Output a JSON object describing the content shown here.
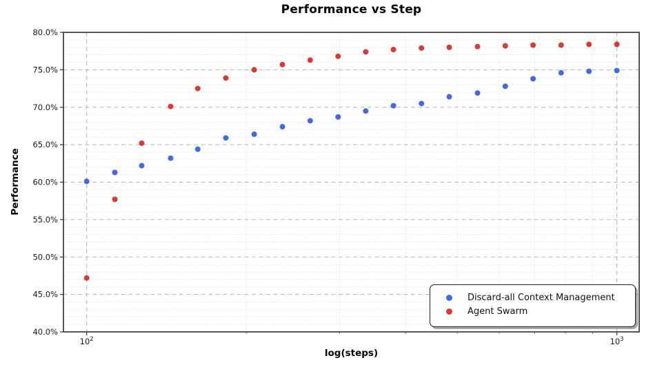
{
  "chart_data": {
    "type": "scatter",
    "title": "Performance vs Step",
    "xlabel": "log(steps)",
    "ylabel": "Performance",
    "x_scale": "log",
    "xlim": [
      90.4,
      1102
    ],
    "ylim": [
      40,
      80
    ],
    "x": [
      100,
      113,
      127,
      144,
      162,
      183,
      207,
      234,
      264,
      298,
      336,
      379,
      428,
      483,
      546,
      616,
      695,
      785,
      886,
      1000
    ],
    "series": [
      {
        "name": "Discard-all Context Management",
        "color": "#4169E1",
        "values": [
          60.1,
          61.3,
          62.2,
          63.2,
          64.4,
          65.9,
          66.4,
          67.4,
          68.2,
          68.7,
          69.5,
          70.2,
          70.5,
          71.4,
          71.9,
          72.8,
          73.8,
          74.6,
          74.8,
          74.9
        ]
      },
      {
        "name": "Agent Swarm",
        "color": "#D63C34",
        "values": [
          47.2,
          57.7,
          65.2,
          70.1,
          72.5,
          73.9,
          75.0,
          75.7,
          76.3,
          76.8,
          77.4,
          77.7,
          77.9,
          78.0,
          78.1,
          78.2,
          78.3,
          78.3,
          78.4,
          78.4
        ]
      }
    ],
    "y_major_ticks": [
      {
        "value": 40,
        "label": "40.0%"
      },
      {
        "value": 45,
        "label": "45.0%"
      },
      {
        "value": 50,
        "label": "50.0%"
      },
      {
        "value": 55,
        "label": "55.0%"
      },
      {
        "value": 60,
        "label": "60.0%"
      },
      {
        "value": 65,
        "label": "65.0%"
      },
      {
        "value": 70,
        "label": "70.0%"
      },
      {
        "value": 75,
        "label": "75.0%"
      },
      {
        "value": 80,
        "label": "80.0%"
      }
    ],
    "y_minor_step": 1,
    "x_major_ticks": [
      {
        "value": 100,
        "base": "10",
        "exp": "2"
      },
      {
        "value": 1000,
        "base": "10",
        "exp": "3"
      }
    ],
    "x_minor_ticks": [
      200,
      300,
      400,
      500,
      600,
      700,
      800,
      900
    ],
    "legend": {
      "position": "lower right"
    },
    "grid": {
      "major_color": "#b5b5b5",
      "minor_color": "#dedede"
    },
    "spine_color": "#555555",
    "marker_diameter": 8
  }
}
